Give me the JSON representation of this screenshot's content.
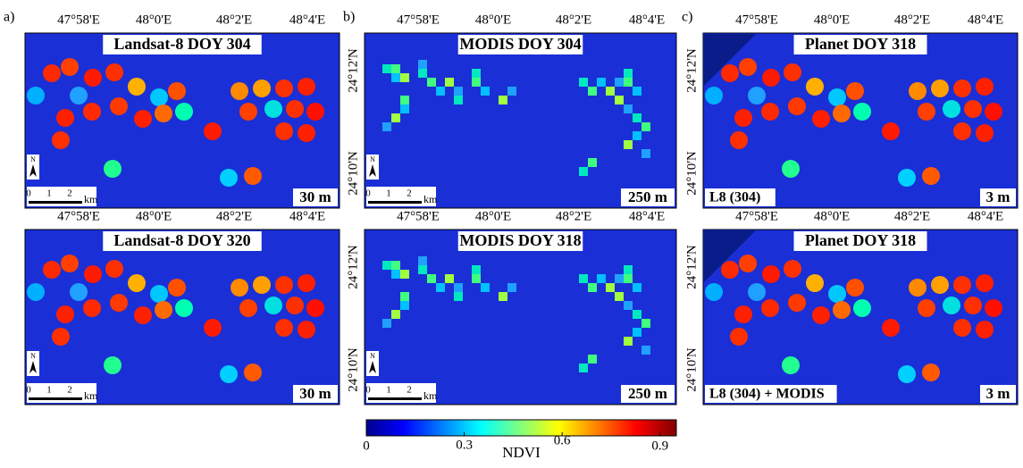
{
  "panels": [
    {
      "label": "a)",
      "title": "Landsat-8 DOY 304",
      "resolution": "30 m",
      "lon_ticks": [
        "47°58'E",
        "48°0'E",
        "48°2'E",
        "48°4'E"
      ],
      "scale_bar": {
        "ticks": [
          "0",
          "1",
          "2"
        ],
        "unit": "km"
      },
      "north": "N"
    },
    {
      "label": "b)",
      "title": "MODIS DOY 304",
      "resolution": "250 m",
      "lon_ticks": [
        "47°58'E",
        "48°0'E",
        "48°2'E",
        "48°4'E"
      ],
      "lat_ticks": [
        "24°12'N",
        "24°10'N"
      ],
      "scale_bar": {
        "ticks": [
          "0",
          "1",
          "2"
        ],
        "unit": "km"
      },
      "north": "N"
    },
    {
      "label": "c)",
      "title": "Planet DOY 318",
      "resolution": "3 m",
      "lon_ticks": [
        "47°58'E",
        "48°0'E",
        "48°2'E",
        "48°4'E"
      ],
      "lat_ticks": [
        "24°12'N",
        "24°10'N"
      ],
      "sublabel": "L8 (304)"
    },
    {
      "title": "Landsat-8 DOY 320",
      "resolution": "30 m",
      "lon_ticks": [
        "47°58'E",
        "48°0'E",
        "48°2'E",
        "48°4'E"
      ],
      "scale_bar": {
        "ticks": [
          "0",
          "1",
          "2"
        ],
        "unit": "km"
      },
      "north": "N"
    },
    {
      "title": "MODIS DOY 318",
      "resolution": "250 m",
      "lon_ticks": [
        "47°58'E",
        "48°0'E",
        "48°2'E",
        "48°4'E"
      ],
      "lat_ticks": [
        "24°12'N",
        "24°10'N"
      ],
      "scale_bar": {
        "ticks": [
          "0",
          "1",
          "2"
        ],
        "unit": "km"
      },
      "north": "N"
    },
    {
      "title": "Planet DOY 318",
      "resolution": "3 m",
      "lon_ticks": [
        "47°58'E",
        "48°0'E",
        "48°2'E",
        "48°4'E"
      ],
      "lat_ticks": [
        "24°12'N",
        "24°10'N"
      ],
      "sublabel": "L8 (304) + MODIS"
    }
  ],
  "colorbar": {
    "label": "NDVI",
    "lim": [
      0,
      0.95
    ],
    "ticks": [
      0,
      0.3,
      0.6,
      0.9
    ]
  }
}
